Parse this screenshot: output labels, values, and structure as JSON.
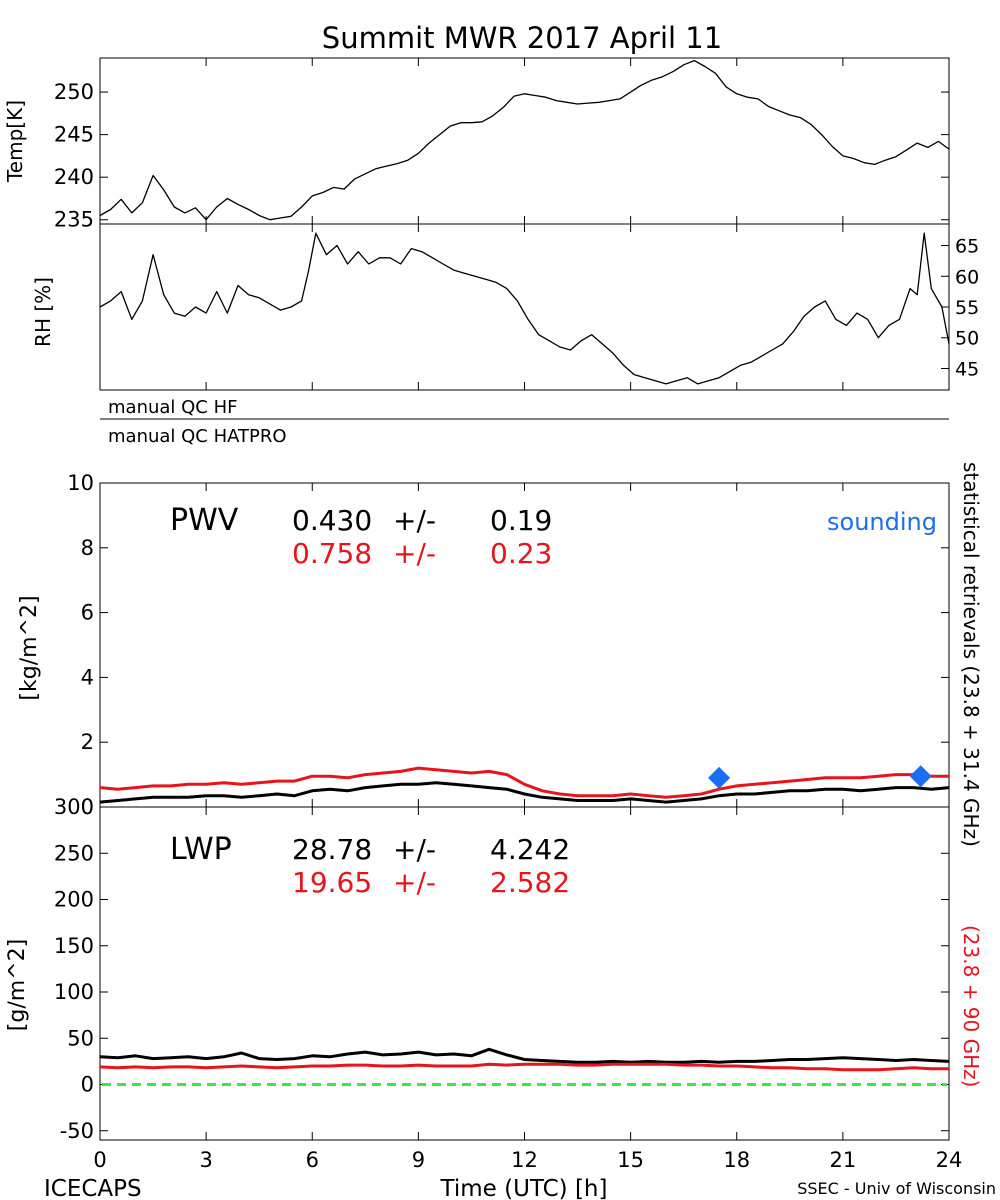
{
  "title": "Summit MWR 2017 April 11",
  "footer": {
    "left": "ICECAPS",
    "center": "Time (UTC) [h]",
    "right": "SSEC - Univ of Wisconsin"
  },
  "side_label": {
    "black": "statistical retrievals (23.8 + 31.4 GHz)",
    "red": "(23.8 + 90 GHz)"
  },
  "qc": {
    "hf": "manual QC HF",
    "hatpro": "manual QC HATPRO"
  },
  "colors": {
    "black_series": "#000000",
    "red_series": "#e8141c",
    "sounding": "#1a6ef0",
    "zero_line": "#33ee33"
  },
  "chart_data": [
    {
      "id": "temperature",
      "type": "line",
      "ylabel": "Temp[K]",
      "xlim": [
        0,
        24
      ],
      "ylim": [
        234.5,
        254
      ],
      "yticks": [
        235,
        240,
        245,
        250
      ],
      "series": [
        {
          "color": "#000000",
          "x": [
            0,
            0.3,
            0.6,
            0.9,
            1.2,
            1.5,
            1.8,
            2.1,
            2.4,
            2.7,
            3.0,
            3.3,
            3.6,
            3.9,
            4.2,
            4.5,
            4.8,
            5.1,
            5.4,
            5.7,
            6.0,
            6.3,
            6.6,
            6.9,
            7.2,
            7.5,
            7.8,
            8.1,
            8.4,
            8.7,
            9.0,
            9.3,
            9.6,
            9.9,
            10.2,
            10.5,
            10.8,
            11.1,
            11.4,
            11.7,
            12.0,
            12.3,
            12.6,
            12.9,
            13.2,
            13.5,
            13.8,
            14.1,
            14.4,
            14.7,
            15.0,
            15.3,
            15.6,
            15.9,
            16.2,
            16.5,
            16.8,
            17.1,
            17.4,
            17.7,
            18.0,
            18.3,
            18.6,
            18.9,
            19.2,
            19.5,
            19.8,
            20.1,
            20.4,
            20.7,
            21.0,
            21.3,
            21.6,
            21.9,
            22.2,
            22.5,
            22.8,
            23.1,
            23.4,
            23.7,
            24.0
          ],
          "y": [
            235.5,
            236.2,
            237.4,
            235.8,
            237.0,
            240.2,
            238.5,
            236.5,
            235.8,
            236.4,
            235.0,
            236.5,
            237.5,
            236.8,
            236.2,
            235.5,
            235.0,
            235.2,
            235.4,
            236.5,
            237.8,
            238.2,
            238.8,
            238.6,
            239.8,
            240.4,
            241.0,
            241.3,
            241.6,
            242.0,
            242.8,
            244.0,
            245.0,
            246.0,
            246.4,
            246.4,
            246.5,
            247.2,
            248.2,
            249.5,
            249.8,
            249.6,
            249.4,
            249.0,
            248.8,
            248.6,
            248.7,
            248.8,
            249.0,
            249.2,
            250.0,
            250.8,
            251.4,
            251.8,
            252.4,
            253.2,
            253.7,
            253.0,
            252.2,
            250.6,
            249.8,
            249.4,
            249.2,
            248.3,
            247.8,
            247.3,
            247.0,
            246.2,
            245.0,
            243.6,
            242.5,
            242.2,
            241.7,
            241.5,
            242.0,
            242.4,
            243.2,
            244.0,
            243.5,
            244.2,
            243.3
          ]
        }
      ]
    },
    {
      "id": "rh",
      "type": "line",
      "ylabel": "RH [%]",
      "xlim": [
        0,
        24
      ],
      "ylim": [
        41.5,
        68.5
      ],
      "yticks": [
        45,
        50,
        55,
        60,
        65
      ],
      "series": [
        {
          "color": "#000000",
          "x": [
            0,
            0.3,
            0.6,
            0.9,
            1.2,
            1.5,
            1.8,
            2.1,
            2.4,
            2.7,
            3.0,
            3.3,
            3.6,
            3.9,
            4.2,
            4.5,
            4.8,
            5.1,
            5.4,
            5.7,
            5.9,
            6.1,
            6.4,
            6.7,
            7.0,
            7.3,
            7.6,
            7.9,
            8.2,
            8.5,
            8.8,
            9.1,
            9.4,
            9.7,
            10.0,
            10.3,
            10.6,
            10.9,
            11.2,
            11.5,
            11.8,
            12.1,
            12.4,
            12.7,
            13.0,
            13.3,
            13.6,
            13.9,
            14.2,
            14.5,
            14.8,
            15.1,
            15.4,
            15.7,
            16.0,
            16.3,
            16.6,
            16.9,
            17.2,
            17.5,
            17.8,
            18.1,
            18.4,
            18.7,
            19.0,
            19.3,
            19.6,
            19.9,
            20.2,
            20.5,
            20.8,
            21.1,
            21.4,
            21.7,
            22.0,
            22.3,
            22.6,
            22.9,
            23.1,
            23.3,
            23.5,
            23.8,
            24.0
          ],
          "y": [
            55,
            56,
            57.5,
            53,
            56,
            63.5,
            57,
            54,
            53.5,
            55,
            54,
            57.5,
            54,
            58.5,
            57,
            56.5,
            55.5,
            54.5,
            55,
            56,
            61,
            67,
            63.5,
            65,
            62,
            64,
            62,
            63,
            63,
            62,
            64.5,
            64,
            63,
            62,
            61,
            60.5,
            60,
            59.5,
            59,
            58,
            56,
            53,
            50.5,
            49.5,
            48.5,
            48,
            49.5,
            50.5,
            49,
            47.5,
            45.5,
            44,
            43.5,
            43,
            42.5,
            43,
            43.5,
            42.5,
            43,
            43.5,
            44.5,
            45.5,
            46,
            47,
            48,
            49,
            51,
            53.5,
            55,
            56,
            53,
            52,
            54,
            53,
            50,
            52,
            53,
            58,
            57,
            67,
            58,
            55,
            49
          ]
        }
      ]
    },
    {
      "id": "pwv",
      "type": "line",
      "ylabel": "[kg/m^2]",
      "label": "PWV",
      "stats": [
        {
          "mean": "0.430",
          "pm": "+/-",
          "sd": "0.19"
        },
        {
          "mean": "0.758",
          "pm": "+/-",
          "sd": "0.23"
        }
      ],
      "legend": "sounding",
      "xlim": [
        0,
        24
      ],
      "ylim": [
        0,
        10
      ],
      "yticks": [
        0,
        2,
        4,
        6,
        8,
        10
      ],
      "series": [
        {
          "color": "#000000",
          "x": [
            0,
            0.5,
            1.0,
            1.5,
            2.0,
            2.5,
            3.0,
            3.5,
            4.0,
            4.5,
            5.0,
            5.5,
            6.0,
            6.5,
            7.0,
            7.5,
            8.0,
            8.5,
            9.0,
            9.5,
            10.0,
            10.5,
            11.0,
            11.5,
            12.0,
            12.5,
            13.0,
            13.5,
            14.0,
            14.5,
            15.0,
            15.5,
            16.0,
            16.5,
            17.0,
            17.5,
            18.0,
            18.5,
            19.0,
            19.5,
            20.0,
            20.5,
            21.0,
            21.5,
            22.0,
            22.5,
            23.0,
            23.5,
            24.0
          ],
          "y": [
            0.15,
            0.2,
            0.25,
            0.3,
            0.3,
            0.3,
            0.35,
            0.35,
            0.3,
            0.35,
            0.4,
            0.35,
            0.5,
            0.55,
            0.5,
            0.6,
            0.65,
            0.7,
            0.7,
            0.75,
            0.7,
            0.65,
            0.6,
            0.55,
            0.4,
            0.3,
            0.25,
            0.2,
            0.2,
            0.2,
            0.25,
            0.2,
            0.15,
            0.2,
            0.25,
            0.35,
            0.4,
            0.4,
            0.45,
            0.5,
            0.5,
            0.55,
            0.55,
            0.5,
            0.55,
            0.6,
            0.6,
            0.55,
            0.6
          ]
        },
        {
          "color": "#e8141c",
          "x": [
            0,
            0.5,
            1.0,
            1.5,
            2.0,
            2.5,
            3.0,
            3.5,
            4.0,
            4.5,
            5.0,
            5.5,
            6.0,
            6.5,
            7.0,
            7.5,
            8.0,
            8.5,
            9.0,
            9.5,
            10.0,
            10.5,
            11.0,
            11.5,
            12.0,
            12.5,
            13.0,
            13.5,
            14.0,
            14.5,
            15.0,
            15.5,
            16.0,
            16.5,
            17.0,
            17.5,
            18.0,
            18.5,
            19.0,
            19.5,
            20.0,
            20.5,
            21.0,
            21.5,
            22.0,
            22.5,
            23.0,
            23.5,
            24.0
          ],
          "y": [
            0.6,
            0.55,
            0.6,
            0.65,
            0.65,
            0.7,
            0.7,
            0.75,
            0.7,
            0.75,
            0.8,
            0.8,
            0.95,
            0.95,
            0.9,
            1.0,
            1.05,
            1.1,
            1.2,
            1.15,
            1.1,
            1.05,
            1.1,
            1.0,
            0.7,
            0.5,
            0.4,
            0.35,
            0.35,
            0.35,
            0.4,
            0.35,
            0.3,
            0.35,
            0.4,
            0.55,
            0.65,
            0.7,
            0.75,
            0.8,
            0.85,
            0.9,
            0.9,
            0.9,
            0.95,
            1.0,
            1.0,
            0.95,
            0.95
          ]
        }
      ],
      "soundings": {
        "x": [
          17.5,
          23.2
        ],
        "y": [
          0.9,
          0.95
        ]
      }
    },
    {
      "id": "lwp",
      "type": "line",
      "ylabel": "[g/m^2]",
      "label": "LWP",
      "stats": [
        {
          "mean": "28.78",
          "pm": "+/-",
          "sd": "4.242"
        },
        {
          "mean": "19.65",
          "pm": "+/-",
          "sd": "2.582"
        }
      ],
      "xlabel": "Time (UTC) [h]",
      "xlim": [
        0,
        24
      ],
      "ylim": [
        -60,
        300
      ],
      "yticks": [
        -50,
        0,
        50,
        100,
        150,
        200,
        250,
        300
      ],
      "xticks": [
        0,
        3,
        6,
        9,
        12,
        15,
        18,
        21,
        24
      ],
      "series": [
        {
          "color": "#000000",
          "x": [
            0,
            0.5,
            1.0,
            1.5,
            2.0,
            2.5,
            3.0,
            3.5,
            4.0,
            4.5,
            5.0,
            5.5,
            6.0,
            6.5,
            7.0,
            7.5,
            8.0,
            8.5,
            9.0,
            9.5,
            10.0,
            10.5,
            11.0,
            11.5,
            12.0,
            12.5,
            13.0,
            13.5,
            14.0,
            14.5,
            15.0,
            15.5,
            16.0,
            16.5,
            17.0,
            17.5,
            18.0,
            18.5,
            19.0,
            19.5,
            20.0,
            20.5,
            21.0,
            21.5,
            22.0,
            22.5,
            23.0,
            23.5,
            24.0
          ],
          "y": [
            30,
            29,
            31,
            28,
            29,
            30,
            28,
            30,
            34,
            28,
            27,
            28,
            31,
            30,
            33,
            35,
            32,
            33,
            35,
            32,
            33,
            31,
            38,
            32,
            27,
            26,
            25,
            24,
            24,
            25,
            24,
            25,
            24,
            24,
            25,
            24,
            25,
            25,
            26,
            27,
            27,
            28,
            29,
            28,
            27,
            26,
            27,
            26,
            25
          ]
        },
        {
          "color": "#e8141c",
          "x": [
            0,
            0.5,
            1.0,
            1.5,
            2.0,
            2.5,
            3.0,
            3.5,
            4.0,
            4.5,
            5.0,
            5.5,
            6.0,
            6.5,
            7.0,
            7.5,
            8.0,
            8.5,
            9.0,
            9.5,
            10.0,
            10.5,
            11.0,
            11.5,
            12.0,
            12.5,
            13.0,
            13.5,
            14.0,
            14.5,
            15.0,
            15.5,
            16.0,
            16.5,
            17.0,
            17.5,
            18.0,
            18.5,
            19.0,
            19.5,
            20.0,
            20.5,
            21.0,
            21.5,
            22.0,
            22.5,
            23.0,
            23.5,
            24.0
          ],
          "y": [
            19,
            18,
            19,
            18,
            19,
            19,
            18,
            19,
            20,
            19,
            18,
            19,
            20,
            20,
            21,
            21,
            20,
            20,
            21,
            20,
            20,
            20,
            22,
            21,
            22,
            22,
            22,
            21,
            21,
            22,
            22,
            22,
            22,
            21,
            21,
            20,
            20,
            19,
            18,
            18,
            17,
            17,
            16,
            16,
            16,
            17,
            18,
            17,
            17
          ]
        }
      ],
      "zero_line": 0
    }
  ]
}
